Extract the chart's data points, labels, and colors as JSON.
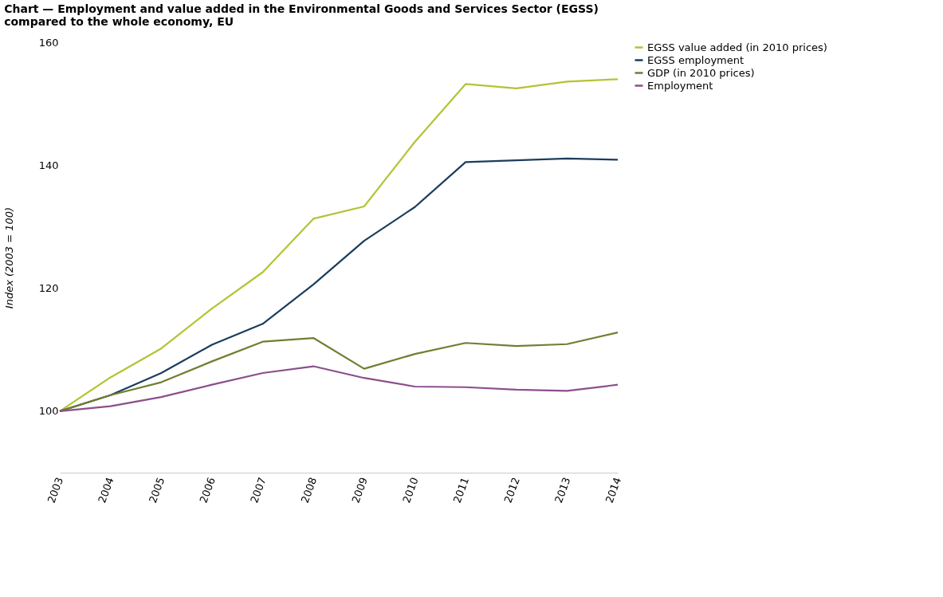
{
  "chart_data": {
    "type": "line",
    "title": "Chart — Employment and value added in the Environmental Goods and Services Sector (EGSS) compared to the whole economy, EU",
    "ylabel": "Index (2003 = 100)",
    "categories": [
      "2003",
      "2004",
      "2005",
      "2006",
      "2007",
      "2008",
      "2009",
      "2010",
      "2011",
      "2012",
      "2013",
      "2014"
    ],
    "series": [
      {
        "name": "EGSS value added (in 2010 prices)",
        "color": "#b5c334",
        "values": [
          100,
          105.5,
          110.2,
          116.7,
          122.6,
          131.3,
          133.3,
          143.8,
          153.2,
          152.5,
          153.6,
          154.0
        ]
      },
      {
        "name": "EGSS employment",
        "color": "#1b3d5e",
        "values": [
          100,
          102.6,
          106.2,
          110.8,
          114.2,
          120.6,
          127.7,
          133.2,
          140.5,
          140.8,
          141.1,
          140.9
        ]
      },
      {
        "name": "GDP (in 2010 prices)",
        "color": "#6f7f31",
        "values": [
          100,
          102.6,
          104.7,
          108.1,
          111.3,
          111.9,
          106.9,
          109.3,
          111.1,
          110.6,
          110.9,
          112.8
        ]
      },
      {
        "name": "Employment",
        "color": "#8b4f8b",
        "values": [
          100,
          100.8,
          102.3,
          104.3,
          106.2,
          107.3,
          105.4,
          104.0,
          103.9,
          103.5,
          103.3,
          104.3
        ]
      }
    ],
    "ylim": [
      90,
      160
    ],
    "yticks": [
      100,
      120,
      140,
      160
    ],
    "grid": false,
    "legend": "top right",
    "marker": "none",
    "line_style": "solid"
  }
}
